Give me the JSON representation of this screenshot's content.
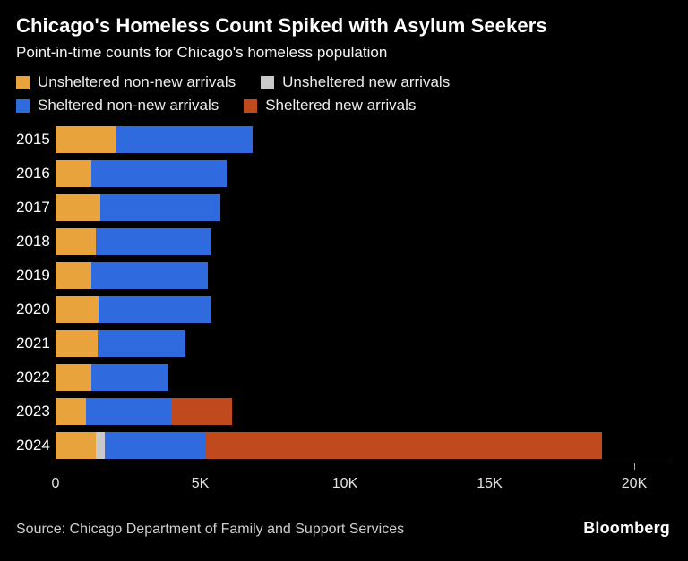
{
  "header": {
    "title": "Chicago's Homeless Count Spiked with Asylum Seekers",
    "subtitle": "Point-in-time counts for Chicago's homeless population"
  },
  "legend": [
    {
      "label": "Unsheltered non-new arrivals",
      "color": "#E8A33C"
    },
    {
      "label": "Unsheltered new arrivals",
      "color": "#C9C9C9"
    },
    {
      "label": "Sheltered non-new arrivals",
      "color": "#2F6BDE"
    },
    {
      "label": "Sheltered new arrivals",
      "color": "#C04A1E"
    }
  ],
  "chart_data": {
    "type": "bar",
    "orientation": "horizontal",
    "stacked": true,
    "title": "Chicago's Homeless Count Spiked with Asylum Seekers",
    "subtitle": "Point-in-time counts for Chicago's homeless population",
    "categories": [
      "2015",
      "2016",
      "2017",
      "2018",
      "2019",
      "2020",
      "2021",
      "2022",
      "2023",
      "2024"
    ],
    "series": [
      {
        "name": "Unsheltered non-new arrivals",
        "color": "#E8A33C",
        "values": [
          2100,
          1250,
          1550,
          1400,
          1250,
          1500,
          1450,
          1250,
          1050,
          1400
        ]
      },
      {
        "name": "Unsheltered new arrivals",
        "color": "#C9C9C9",
        "values": [
          0,
          0,
          0,
          0,
          0,
          0,
          0,
          0,
          0,
          300
        ]
      },
      {
        "name": "Sheltered non-new arrivals",
        "color": "#2F6BDE",
        "values": [
          4700,
          4650,
          4150,
          4000,
          4000,
          3900,
          3050,
          2650,
          2950,
          3500
        ]
      },
      {
        "name": "Sheltered new arrivals",
        "color": "#C04A1E",
        "values": [
          0,
          0,
          0,
          0,
          0,
          0,
          0,
          0,
          2100,
          13700
        ]
      }
    ],
    "xlabel": "",
    "ylabel": "",
    "xlim": [
      0,
      20000
    ],
    "xticks": [
      {
        "value": 0,
        "label": "0"
      },
      {
        "value": 5000,
        "label": "5K"
      },
      {
        "value": 10000,
        "label": "10K"
      },
      {
        "value": 15000,
        "label": "15K"
      },
      {
        "value": 20000,
        "label": "20K"
      }
    ],
    "grid": false,
    "legend_position": "top"
  },
  "footer": {
    "source": "Source: Chicago Department of Family and Support Services",
    "brand": "Bloomberg"
  }
}
